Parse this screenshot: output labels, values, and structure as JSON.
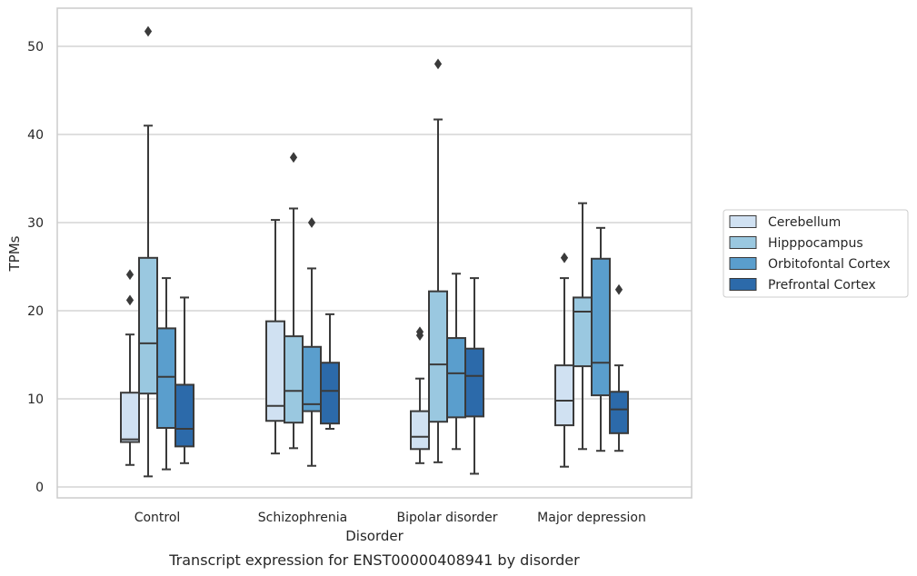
{
  "caption": "Transcript expression for ENST00000408941 by disorder",
  "chart_data": {
    "type": "boxplot",
    "title": "",
    "xlabel": "Disorder",
    "ylabel": "TPMs",
    "ylim": [
      -1.2,
      54.4
    ],
    "yticks": [
      0,
      10,
      20,
      30,
      40,
      50
    ],
    "grid": "horizontal",
    "legend_placement": "right",
    "categories": [
      "Control",
      "Schizophrenia",
      "Bipolar disorder",
      "Major depression"
    ],
    "series": [
      {
        "name": "Cerebellum",
        "color": "#d0e1f2",
        "boxes": [
          {
            "whisker_low": 2.5,
            "q1": 5.1,
            "median": 5.4,
            "q3": 10.7,
            "whisker_high": 17.3,
            "outliers": [
              21.2,
              24.1
            ]
          },
          {
            "whisker_low": 3.8,
            "q1": 7.5,
            "median": 9.2,
            "q3": 18.8,
            "whisker_high": 30.3,
            "outliers": []
          },
          {
            "whisker_low": 2.7,
            "q1": 4.3,
            "median": 5.7,
            "q3": 8.6,
            "whisker_high": 12.3,
            "outliers": [
              17.2,
              17.6
            ]
          },
          {
            "whisker_low": 2.3,
            "q1": 7.0,
            "median": 9.8,
            "q3": 13.8,
            "whisker_high": 23.7,
            "outliers": [
              26.0
            ]
          }
        ]
      },
      {
        "name": "Hipppocampus",
        "color": "#9ac8e0",
        "boxes": [
          {
            "whisker_low": 1.2,
            "q1": 10.6,
            "median": 16.3,
            "q3": 26.0,
            "whisker_high": 41.0,
            "outliers": [
              51.7
            ]
          },
          {
            "whisker_low": 4.4,
            "q1": 7.3,
            "median": 10.9,
            "q3": 17.1,
            "whisker_high": 31.6,
            "outliers": [
              37.4
            ]
          },
          {
            "whisker_low": 2.8,
            "q1": 7.4,
            "median": 13.9,
            "q3": 22.2,
            "whisker_high": 41.7,
            "outliers": [
              48.0
            ]
          },
          {
            "whisker_low": 4.3,
            "q1": 13.7,
            "median": 19.9,
            "q3": 21.5,
            "whisker_high": 32.2,
            "outliers": []
          }
        ]
      },
      {
        "name": "Orbitofontal Cortex",
        "color": "#5a9ecd",
        "boxes": [
          {
            "whisker_low": 2.0,
            "q1": 6.7,
            "median": 12.5,
            "q3": 18.0,
            "whisker_high": 23.7,
            "outliers": []
          },
          {
            "whisker_low": 2.4,
            "q1": 8.6,
            "median": 9.4,
            "q3": 15.9,
            "whisker_high": 24.8,
            "outliers": [
              30.0
            ]
          },
          {
            "whisker_low": 4.3,
            "q1": 7.9,
            "median": 12.9,
            "q3": 16.9,
            "whisker_high": 24.2,
            "outliers": []
          },
          {
            "whisker_low": 4.1,
            "q1": 10.4,
            "median": 14.1,
            "q3": 25.9,
            "whisker_high": 29.4,
            "outliers": []
          }
        ]
      },
      {
        "name": "Prefrontal Cortex",
        "color": "#2c6aaa",
        "boxes": [
          {
            "whisker_low": 2.7,
            "q1": 4.6,
            "median": 6.6,
            "q3": 11.6,
            "whisker_high": 21.5,
            "outliers": []
          },
          {
            "whisker_low": 6.6,
            "q1": 7.2,
            "median": 10.9,
            "q3": 14.1,
            "whisker_high": 19.6,
            "outliers": []
          },
          {
            "whisker_low": 1.5,
            "q1": 8.0,
            "median": 12.6,
            "q3": 15.7,
            "whisker_high": 23.7,
            "outliers": []
          },
          {
            "whisker_low": 4.1,
            "q1": 6.1,
            "median": 8.8,
            "q3": 10.8,
            "whisker_high": 13.8,
            "outliers": [
              22.4
            ]
          }
        ]
      }
    ]
  }
}
